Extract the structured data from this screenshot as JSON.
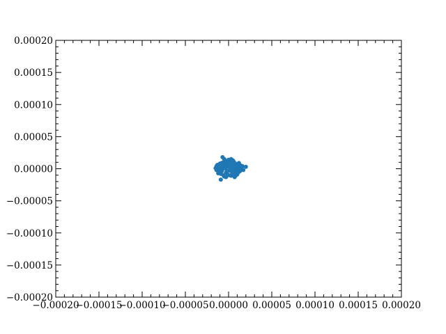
{
  "chart_data": {
    "type": "scatter",
    "title": "",
    "xlabel": "",
    "ylabel": "",
    "xlim": [
      -0.0002,
      0.0002
    ],
    "ylim": [
      -0.0002,
      0.0002
    ],
    "x_ticks": [
      -0.0002,
      -0.00015,
      -0.0001,
      -5e-05,
      0.0,
      5e-05,
      0.0001,
      0.00015,
      0.0002
    ],
    "y_ticks": [
      -0.0002,
      -0.00015,
      -0.0001,
      -5e-05,
      0.0,
      5e-05,
      0.0001,
      0.00015,
      0.0002
    ],
    "x_tick_labels": [
      "−0.00020",
      "−0.00015",
      "−0.00010",
      "−0.00005",
      "0.00000",
      "0.00005",
      "0.00010",
      "0.00015",
      "0.00020"
    ],
    "y_tick_labels": [
      "−0.00020",
      "−0.00015",
      "−0.00010",
      "−0.00005",
      "0.00000",
      "0.00005",
      "0.00010",
      "0.00015",
      "0.00020"
    ],
    "minor_ticks_per_major": 4,
    "ticks_on_all_sides": true,
    "grid": false,
    "legend": false,
    "marker_color": "#1f77b4",
    "series": [
      {
        "values": [
          [
            -1.5e-05,
            1e-06
          ],
          [
            -1.4e-05,
            -2e-06
          ],
          [
            -1.2e-05,
            4e-06
          ],
          [
            -1.1e-05,
            -5e-06
          ],
          [
            -1e-05,
            8e-06
          ],
          [
            -9e-06,
            -8e-06
          ],
          [
            -8e-06,
            2e-06
          ],
          [
            -7e-06,
            -1e-06
          ],
          [
            -6e-06,
            1e-05
          ],
          [
            -5e-06,
            -1.2e-05
          ],
          [
            -4e-06,
            6e-06
          ],
          [
            -3e-06,
            -6e-06
          ],
          [
            -2e-06,
            1.2e-05
          ],
          [
            -1e-06,
            -9e-06
          ],
          [
            0.0,
            3e-06
          ],
          [
            1e-06,
            -3e-06
          ],
          [
            2e-06,
            9e-06
          ],
          [
            3e-06,
            -1.1e-05
          ],
          [
            4e-06,
            5e-06
          ],
          [
            5e-06,
            -4e-06
          ],
          [
            6e-06,
            1.1e-05
          ],
          [
            7e-06,
            -7e-06
          ],
          [
            8e-06,
            3e-06
          ],
          [
            9e-06,
            -2e-06
          ],
          [
            1e-05,
            7e-06
          ],
          [
            1.1e-05,
            -6e-06
          ],
          [
            1.2e-05,
            2e-06
          ],
          [
            1.3e-05,
            -4e-06
          ],
          [
            1.5e-05,
            1e-06
          ],
          [
            1.7e-05,
            -2e-06
          ],
          [
            2e-05,
            3e-06
          ],
          [
            -1.3e-05,
            6e-06
          ],
          [
            -1.2e-05,
            -7e-06
          ],
          [
            -1e-05,
            0.0
          ],
          [
            -8e-06,
            9e-06
          ],
          [
            -6e-06,
            -1e-05
          ],
          [
            -4e-06,
            1e-06
          ],
          [
            -2e-06,
            -3e-06
          ],
          [
            0.0,
            1.4e-05
          ],
          [
            2e-06,
            0.0
          ],
          [
            4e-06,
            -8e-06
          ],
          [
            6e-06,
            0.0
          ],
          [
            8e-06,
            8e-06
          ],
          [
            1e-05,
            -9e-06
          ],
          [
            1.2e-05,
            9e-06
          ],
          [
            -5e-06,
            1.5e-05
          ],
          [
            -9e-06,
            -1.7e-05
          ],
          [
            -3e-06,
            4e-06
          ],
          [
            1e-06,
            6e-06
          ],
          [
            3e-06,
            2e-06
          ],
          [
            -7e-06,
            5e-06
          ],
          [
            5e-06,
            1.3e-05
          ],
          [
            9e-06,
            5e-06
          ],
          [
            1.1e-05,
            1e-06
          ],
          [
            -1.1e-05,
            2e-06
          ],
          [
            -1.4e-05,
            4e-06
          ],
          [
            7e-06,
            -1.3e-05
          ],
          [
            -1e-06,
            1e-05
          ],
          [
            1.4e-05,
            5e-06
          ],
          [
            -8e-06,
            -4e-06
          ],
          [
            6e-06,
            -5e-06
          ],
          [
            -3e-06,
            -1.3e-05
          ],
          [
            0.0,
            -1e-05
          ],
          [
            3e-06,
            1.5e-05
          ],
          [
            -7e-06,
            1.8e-05
          ],
          [
            8e-06,
            -1.1e-05
          ],
          [
            1.6e-05,
            4e-06
          ],
          [
            -1.2e-05,
            -3e-06
          ],
          [
            4e-06,
            1e-05
          ],
          [
            -2e-06,
            7e-06
          ]
        ]
      }
    ]
  }
}
